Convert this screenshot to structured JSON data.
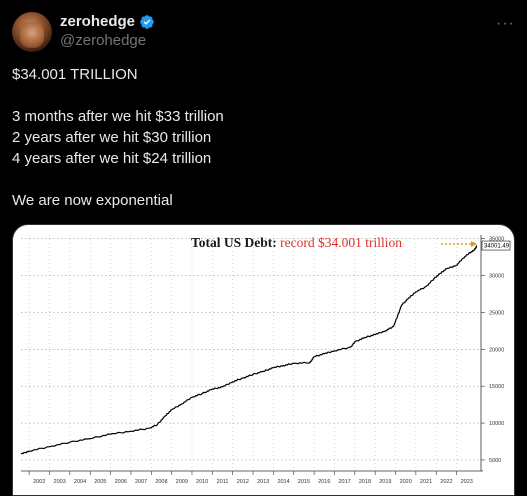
{
  "author": {
    "display_name": "zerohedge",
    "handle": "@zerohedge",
    "verified_color": "#1d9bf0"
  },
  "menu": {
    "more_label": "···"
  },
  "tweet": {
    "line1": "$34.001 TRILLION",
    "line2": "3 months after we hit $33 trillion",
    "line3": "2 years after we hit $30 trillion",
    "line4": "4 years after we hit $24 trillion",
    "line5": "We are now exponential"
  },
  "chart_data": {
    "type": "line",
    "title_prefix": "Total US Debt:",
    "title_highlight": "record $34.001 trillion",
    "title_highlight_color": "#d9342b",
    "last_value_label": "34001.49",
    "ylim": [
      3500,
      35500
    ],
    "yticks": [
      35000,
      30000,
      25000,
      20000,
      15000,
      10000,
      5000
    ],
    "xticks": [
      "2002",
      "2003",
      "2004",
      "2005",
      "2006",
      "2007",
      "2008",
      "2009",
      "2010",
      "2011",
      "2012",
      "2013",
      "2014",
      "2015",
      "2016",
      "2017",
      "2018",
      "2019",
      "2020",
      "2021",
      "2022",
      "2023"
    ],
    "x": [
      2001.6,
      2002.0,
      2003.0,
      2004.0,
      2005.0,
      2006.0,
      2007.0,
      2007.9,
      2008.3,
      2008.7,
      2009.0,
      2009.5,
      2010.0,
      2010.5,
      2011.0,
      2011.5,
      2012.0,
      2012.5,
      2013.0,
      2013.5,
      2014.0,
      2014.5,
      2015.0,
      2015.8,
      2016.0,
      2016.5,
      2017.0,
      2017.8,
      2018.0,
      2018.5,
      2019.0,
      2019.5,
      2019.9,
      2020.1,
      2020.3,
      2020.6,
      2021.0,
      2021.5,
      2021.9,
      2022.2,
      2022.5,
      2023.0,
      2023.3,
      2023.6,
      2023.85,
      2024.0
    ],
    "values": [
      5800,
      6200,
      6800,
      7400,
      7900,
      8500,
      8900,
      9300,
      9800,
      11000,
      11800,
      12600,
      13500,
      14000,
      14600,
      14900,
      15600,
      16100,
      16600,
      17000,
      17500,
      17800,
      18100,
      18200,
      19000,
      19400,
      19800,
      20300,
      21000,
      21600,
      22000,
      22500,
      23100,
      24500,
      26000,
      26800,
      27800,
      28500,
      29600,
      30300,
      30900,
      31400,
      32300,
      33000,
      33400,
      34001
    ],
    "series_color": "#000000",
    "grid": true
  }
}
